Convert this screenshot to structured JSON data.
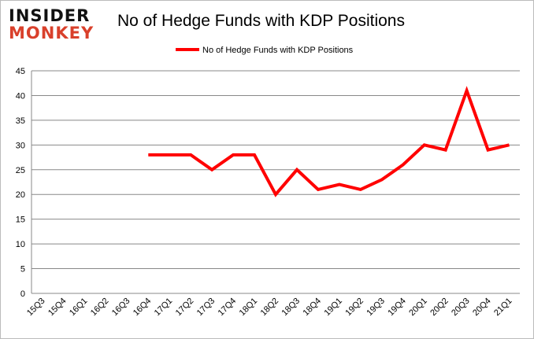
{
  "logo": {
    "line1": "INSIDER",
    "line2": "MONKEY"
  },
  "chart_data": {
    "type": "line",
    "title": "No of Hedge Funds with KDP Positions",
    "xlabel": "",
    "ylabel": "",
    "ylim": [
      0,
      45
    ],
    "yticks": [
      0,
      5,
      10,
      15,
      20,
      25,
      30,
      35,
      40,
      45
    ],
    "grid": true,
    "legend": "top-center",
    "categories": [
      "15Q3",
      "15Q4",
      "16Q1",
      "16Q2",
      "16Q3",
      "16Q4",
      "17Q1",
      "17Q2",
      "17Q3",
      "17Q4",
      "18Q1",
      "18Q2",
      "18Q3",
      "18Q4",
      "19Q1",
      "19Q2",
      "19Q3",
      "19Q4",
      "20Q1",
      "20Q2",
      "20Q3",
      "20Q4",
      "21Q1"
    ],
    "series": [
      {
        "name": "No of Hedge Funds with KDP Positions",
        "color": "#ff0000",
        "values": [
          null,
          null,
          null,
          null,
          null,
          28,
          28,
          28,
          25,
          28,
          28,
          20,
          25,
          21,
          22,
          21,
          23,
          26,
          30,
          29,
          41,
          29,
          30
        ]
      }
    ]
  }
}
